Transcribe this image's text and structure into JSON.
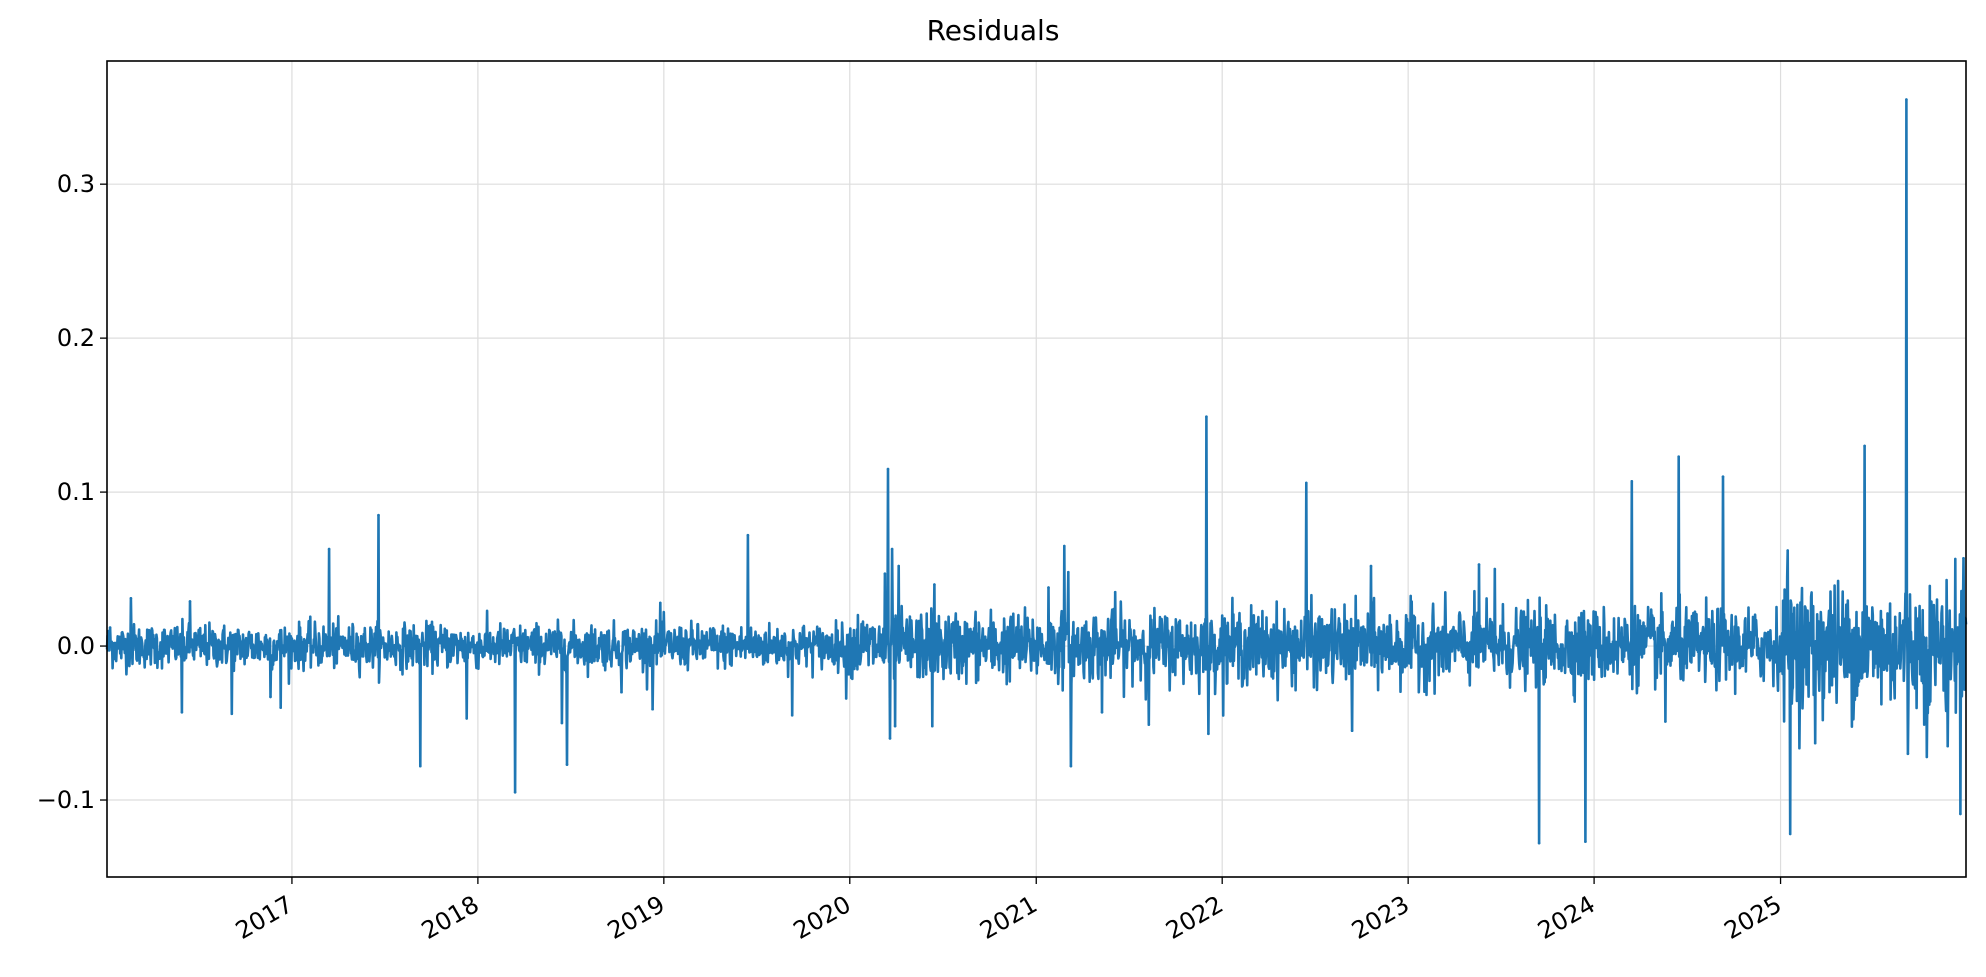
{
  "chart_data": {
    "type": "line",
    "title": "Residuals",
    "xlabel": "",
    "ylabel": "",
    "x_range": [
      "2016-01-04",
      "2025-12-31"
    ],
    "ylim": [
      -0.15,
      0.38
    ],
    "grid": true,
    "legend": "none",
    "line_color": "#1f77b4",
    "x_ticks": [
      "2017",
      "2018",
      "2019",
      "2020",
      "2021",
      "2022",
      "2023",
      "2024",
      "2025"
    ],
    "y_ticks": [
      "−0.1",
      "0.0",
      "0.1",
      "0.2",
      "0.3"
    ],
    "y_tick_values": [
      -0.1,
      0.0,
      0.1,
      0.2,
      0.3
    ],
    "noise_profile": [
      {
        "from": "2016-01-04",
        "to": "2019-12-31",
        "amplitude": 0.007
      },
      {
        "from": "2020-01-01",
        "to": "2021-12-31",
        "amplitude": 0.011
      },
      {
        "from": "2022-01-01",
        "to": "2024-12-31",
        "amplitude": 0.012
      },
      {
        "from": "2025-01-01",
        "to": "2025-12-31",
        "amplitude": 0.02
      }
    ],
    "series": [
      {
        "values": [
          {
            "x": "2016-01-10",
            "y": 0.012
          },
          {
            "x": "2016-02-20",
            "y": 0.031
          },
          {
            "x": "2016-05-30",
            "y": -0.043
          },
          {
            "x": "2016-06-15",
            "y": 0.029
          },
          {
            "x": "2016-09-05",
            "y": -0.044
          },
          {
            "x": "2016-11-20",
            "y": -0.033
          },
          {
            "x": "2016-12-10",
            "y": -0.04
          },
          {
            "x": "2017-03-15",
            "y": 0.063
          },
          {
            "x": "2017-06-20",
            "y": 0.085
          },
          {
            "x": "2017-09-10",
            "y": -0.078
          },
          {
            "x": "2017-12-10",
            "y": -0.047
          },
          {
            "x": "2018-03-15",
            "y": -0.095
          },
          {
            "x": "2018-06-15",
            "y": -0.05
          },
          {
            "x": "2018-06-25",
            "y": -0.077
          },
          {
            "x": "2018-10-10",
            "y": -0.03
          },
          {
            "x": "2018-12-10",
            "y": -0.041
          },
          {
            "x": "2018-12-25",
            "y": 0.028
          },
          {
            "x": "2019-06-15",
            "y": 0.072
          },
          {
            "x": "2019-09-10",
            "y": -0.045
          },
          {
            "x": "2019-12-25",
            "y": -0.034
          },
          {
            "x": "2020-03-10",
            "y": 0.047
          },
          {
            "x": "2020-03-16",
            "y": 0.115
          },
          {
            "x": "2020-03-20",
            "y": -0.06
          },
          {
            "x": "2020-03-24",
            "y": 0.063
          },
          {
            "x": "2020-03-30",
            "y": -0.052
          },
          {
            "x": "2020-04-06",
            "y": 0.052
          },
          {
            "x": "2020-06-11",
            "y": -0.052
          },
          {
            "x": "2020-06-15",
            "y": 0.04
          },
          {
            "x": "2021-01-25",
            "y": 0.038
          },
          {
            "x": "2021-02-25",
            "y": 0.065
          },
          {
            "x": "2021-03-05",
            "y": 0.048
          },
          {
            "x": "2021-03-10",
            "y": -0.078
          },
          {
            "x": "2021-05-10",
            "y": -0.043
          },
          {
            "x": "2021-06-05",
            "y": 0.035
          },
          {
            "x": "2021-08-10",
            "y": -0.051
          },
          {
            "x": "2021-12-01",
            "y": 0.149
          },
          {
            "x": "2021-12-05",
            "y": -0.057
          },
          {
            "x": "2022-06-15",
            "y": 0.106
          },
          {
            "x": "2022-09-13",
            "y": -0.055
          },
          {
            "x": "2022-10-20",
            "y": 0.052
          },
          {
            "x": "2023-05-20",
            "y": 0.053
          },
          {
            "x": "2023-06-20",
            "y": 0.05
          },
          {
            "x": "2023-09-15",
            "y": -0.128
          },
          {
            "x": "2023-12-15",
            "y": -0.127
          },
          {
            "x": "2024-03-15",
            "y": 0.107
          },
          {
            "x": "2024-05-20",
            "y": -0.049
          },
          {
            "x": "2024-06-15",
            "y": 0.123
          },
          {
            "x": "2024-09-10",
            "y": 0.11
          },
          {
            "x": "2025-01-15",
            "y": 0.062
          },
          {
            "x": "2025-01-20",
            "y": -0.122
          },
          {
            "x": "2025-03-10",
            "y": -0.063
          },
          {
            "x": "2025-06-15",
            "y": 0.13
          },
          {
            "x": "2025-09-05",
            "y": 0.355
          },
          {
            "x": "2025-09-08",
            "y": -0.07
          },
          {
            "x": "2025-10-15",
            "y": -0.072
          },
          {
            "x": "2025-11-25",
            "y": -0.065
          },
          {
            "x": "2025-12-20",
            "y": -0.109
          },
          {
            "x": "2025-12-26",
            "y": 0.057
          }
        ]
      }
    ]
  }
}
